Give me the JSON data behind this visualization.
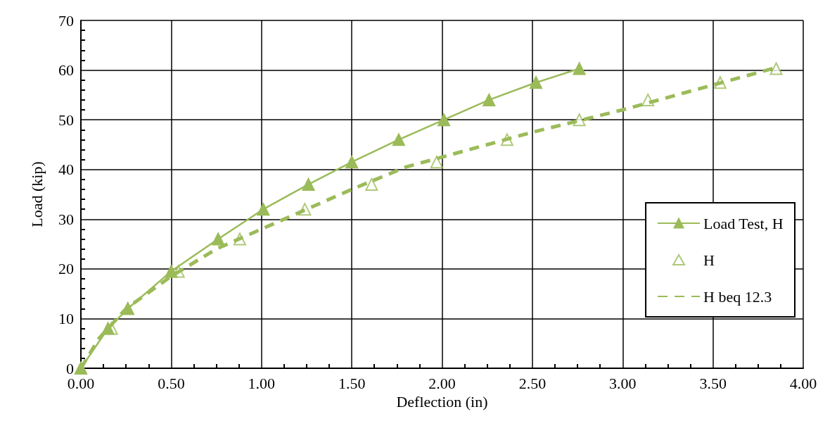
{
  "chart_data": {
    "type": "line",
    "xlabel": "Deflection (in)",
    "ylabel": "Load (kip)",
    "xlim": [
      0,
      4
    ],
    "xticks": [
      {
        "value": 0,
        "label": "0.00"
      },
      {
        "value": 0.5,
        "label": "0.50"
      },
      {
        "value": 1,
        "label": "1.00"
      },
      {
        "value": 1.5,
        "label": "1.50"
      },
      {
        "value": 2,
        "label": "2.00"
      },
      {
        "value": 2.5,
        "label": "2.50"
      },
      {
        "value": 3,
        "label": "3.00"
      },
      {
        "value": 3.5,
        "label": "3.50"
      },
      {
        "value": 4,
        "label": "4.00"
      }
    ],
    "ylim": [
      0,
      70
    ],
    "yticks": [
      0,
      10,
      20,
      30,
      40,
      50,
      60,
      70
    ],
    "grid": true,
    "legend": "right",
    "series": [
      {
        "name": "Load Test, H",
        "marker": "triangle",
        "line_style": "solid",
        "color": "#9bbb59",
        "x": [
          0,
          0.15,
          0.26,
          0.5,
          0.76,
          1.01,
          1.26,
          1.5,
          1.76,
          2.01,
          2.26,
          2.52,
          2.76
        ],
        "values": [
          0,
          8,
          12,
          19.5,
          26,
          32,
          37,
          41.5,
          46,
          50,
          54,
          57.5,
          60.3
        ]
      },
      {
        "name": "H",
        "type": "scatter",
        "marker": "triangle",
        "color": "#9bbb59",
        "x": [
          0,
          0.17,
          0.26,
          0.54,
          0.88,
          1.24,
          1.61,
          1.97,
          2.36,
          2.76,
          3.14,
          3.54,
          3.85
        ],
        "values": [
          0,
          8,
          12,
          19.5,
          26,
          32,
          37,
          41.5,
          46,
          50,
          54,
          57.5,
          60.3
        ]
      },
      {
        "name": "H beq 12.3",
        "marker": "none",
        "line_style": "dashed",
        "color": "#9bbb59",
        "x": [
          0,
          0.1,
          0.25,
          0.5,
          0.75,
          1.0,
          1.5,
          1.8,
          2.0,
          2.5,
          3.0,
          3.5,
          3.85
        ],
        "values": [
          0,
          6,
          12,
          18.5,
          24,
          28,
          36,
          40.5,
          42.5,
          47.5,
          52,
          57,
          60.5
        ]
      }
    ]
  }
}
